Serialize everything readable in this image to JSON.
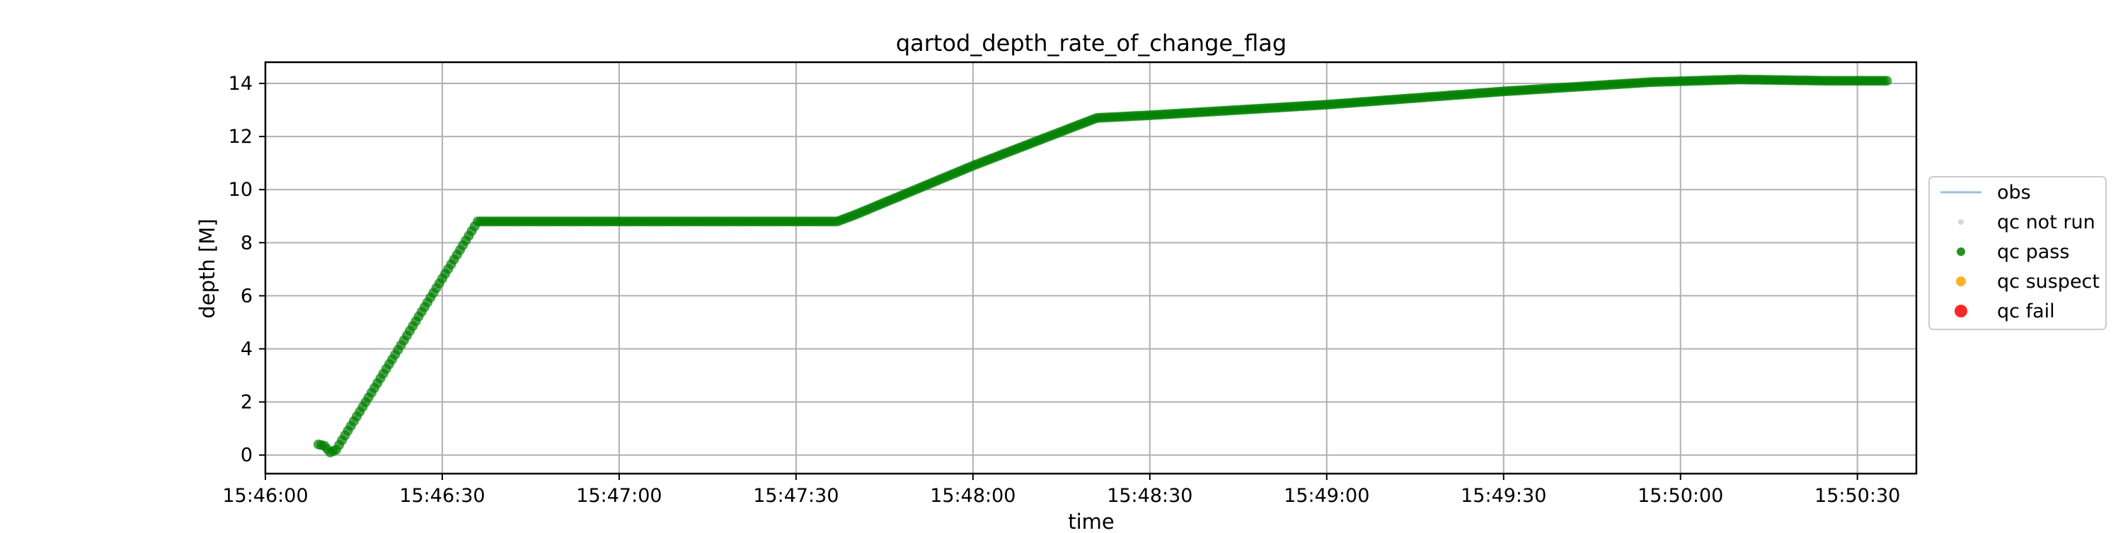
{
  "chart_data": {
    "type": "scatter",
    "title": "qartod_depth_rate_of_change_flag",
    "xlabel": "time",
    "ylabel": "depth [M]",
    "xlim": [
      "15:46:00",
      "15:50:40"
    ],
    "ylim": [
      -0.7,
      14.8
    ],
    "x_ticks": [
      "15:46:00",
      "15:46:30",
      "15:47:00",
      "15:47:30",
      "15:48:00",
      "15:48:30",
      "15:49:00",
      "15:49:30",
      "15:50:00",
      "15:50:30"
    ],
    "y_ticks": [
      0,
      2,
      4,
      6,
      8,
      10,
      12,
      14
    ],
    "grid": true,
    "legend_position": "right, outside plot",
    "legend": [
      {
        "label": "obs",
        "marker": "line",
        "color": "#1f77b4"
      },
      {
        "label": "qc not run",
        "marker": "dot",
        "color": "#bbbbbb"
      },
      {
        "label": "qc pass",
        "marker": "dot",
        "color": "#008000"
      },
      {
        "label": "qc suspect",
        "marker": "dot",
        "color": "#ffa500"
      },
      {
        "label": "qc fail",
        "marker": "dot",
        "color": "#ff0000"
      }
    ],
    "series": [
      {
        "name": "qc pass",
        "color": "#008000",
        "profile": [
          {
            "x": "15:46:09",
            "y": 0.4
          },
          {
            "x": "15:46:10",
            "y": 0.35
          },
          {
            "x": "15:46:11",
            "y": 0.1
          },
          {
            "x": "15:46:12",
            "y": 0.2
          },
          {
            "x": "15:46:36",
            "y": 8.8
          },
          {
            "x": "15:47:37",
            "y": 8.8
          },
          {
            "x": "15:47:40",
            "y": 9.05
          },
          {
            "x": "15:48:00",
            "y": 10.9
          },
          {
            "x": "15:48:21",
            "y": 12.7
          },
          {
            "x": "15:48:30",
            "y": 12.8
          },
          {
            "x": "15:49:00",
            "y": 13.2
          },
          {
            "x": "15:49:30",
            "y": 13.7
          },
          {
            "x": "15:49:55",
            "y": 14.05
          },
          {
            "x": "15:50:10",
            "y": 14.15
          },
          {
            "x": "15:50:25",
            "y": 14.1
          },
          {
            "x": "15:50:35",
            "y": 14.1
          }
        ]
      }
    ]
  }
}
